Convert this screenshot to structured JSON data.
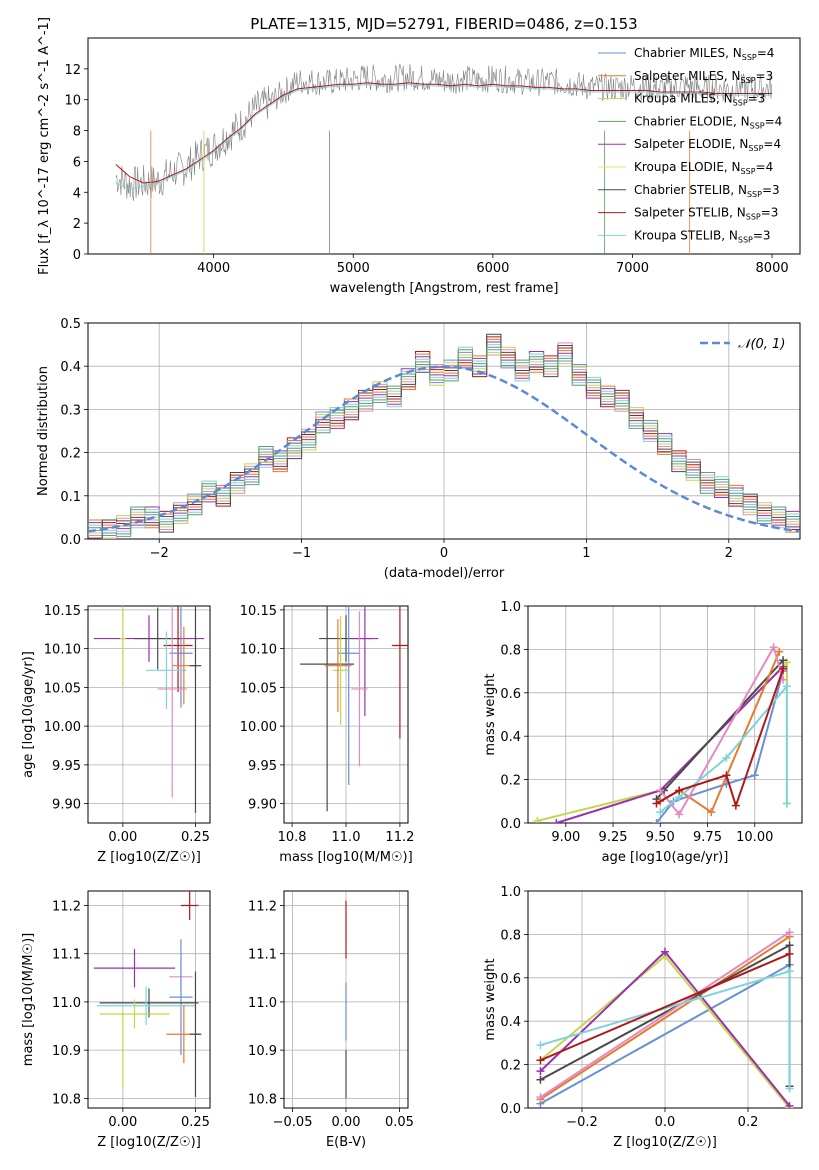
{
  "chart_data": [
    {
      "id": "spectrum",
      "type": "line",
      "title": "PLATE=1315, MJD=52791, FIBERID=0486, z=0.153",
      "xlabel": "wavelength [Angstrom, rest frame]",
      "ylabel": "Flux [f_λ 10^-17 erg cm^-2 s^-1 A^-1]",
      "xlim": [
        3100,
        8200
      ],
      "ylim": [
        0,
        14
      ],
      "xticks": [
        4000,
        5000,
        6000,
        7000,
        8000
      ],
      "yticks": [
        0,
        2,
        4,
        6,
        8,
        10,
        12
      ],
      "grid": false,
      "legend_position": "upper right",
      "legend": [
        {
          "label": "Chabrier MILES, N_SSP=4",
          "color": "#6a8fd6"
        },
        {
          "label": "Salpeter MILES, N_SSP=3",
          "color": "#e67a2e"
        },
        {
          "label": "Kroupa MILES, N_SSP=3",
          "color": "#c4d64a"
        },
        {
          "label": "Chabrier ELODIE, N_SSP=4",
          "color": "#5f9e5f"
        },
        {
          "label": "Salpeter ELODIE, N_SSP=4",
          "color": "#9b30b0"
        },
        {
          "label": "Kroupa ELODIE, N_SSP=4",
          "color": "#dde86a"
        },
        {
          "label": "Chabrier STELIB, N_SSP=3",
          "color": "#4a4a4a"
        },
        {
          "label": "Salpeter STELIB, N_SSP=3",
          "color": "#b01818"
        },
        {
          "label": "Kroupa STELIB, N_SSP=3",
          "color": "#7fd4d8"
        }
      ],
      "series": [
        {
          "role": "data",
          "color": "#808080",
          "x": [
            3300,
            3400,
            3500,
            3600,
            3700,
            3800,
            3900,
            4000,
            4100,
            4200,
            4300,
            4400,
            4500,
            4600,
            4700,
            4800,
            4900,
            5000,
            5100,
            5200,
            5300,
            5400,
            5500,
            5600,
            5700,
            5800,
            5900,
            6000,
            6100,
            6200,
            6300,
            6400,
            6500,
            6600,
            6700,
            6800,
            6900,
            7000,
            7100,
            7200,
            7300,
            7400,
            7500,
            7600,
            7700,
            7800,
            7900,
            8000
          ],
          "y": [
            5.0,
            4.5,
            4.6,
            4.7,
            5.3,
            5.6,
            6.4,
            6.9,
            7.7,
            8.4,
            9.4,
            9.8,
            10.5,
            11.2,
            11.2,
            11.1,
            11.2,
            11.3,
            11.5,
            11.3,
            11.4,
            11.5,
            11.4,
            11.3,
            11.2,
            11.4,
            11.2,
            11.4,
            11.3,
            11.2,
            11.1,
            11.2,
            11.1,
            11.0,
            10.8,
            10.8,
            10.8,
            10.9,
            10.8,
            10.7,
            10.8,
            10.9,
            10.7,
            10.8,
            10.7,
            10.8,
            10.7,
            10.8
          ]
        },
        {
          "role": "model",
          "color": "#7fd4d8",
          "x": [
            3300,
            3400,
            3500,
            3600,
            3700,
            3800,
            3900,
            4000,
            4100,
            4200,
            4300,
            4400,
            4500,
            4600,
            4700,
            4800,
            4900,
            5000,
            5100,
            5200,
            5300,
            5400,
            5500,
            5600,
            5700,
            5800,
            5900,
            6000,
            6100,
            6200,
            6300,
            6400,
            6500,
            6600,
            6700,
            6800,
            6900,
            7000,
            7100,
            7200,
            7300,
            7400,
            7500,
            7600,
            7700,
            7800,
            7900,
            8000
          ],
          "y": [
            4.6,
            4.2,
            4.4,
            4.6,
            5.0,
            5.4,
            6.0,
            6.6,
            7.4,
            8.1,
            9.0,
            9.6,
            10.2,
            10.6,
            10.7,
            10.8,
            10.9,
            10.9,
            11.0,
            10.9,
            10.9,
            11.0,
            10.9,
            10.9,
            10.8,
            10.9,
            10.8,
            10.9,
            10.8,
            10.8,
            10.7,
            10.7,
            10.6,
            10.6,
            10.5,
            10.5,
            10.5,
            10.5,
            10.5,
            10.4,
            10.4,
            10.4,
            10.4,
            10.3,
            10.3,
            10.3,
            10.3,
            10.3
          ]
        },
        {
          "role": "model",
          "color": "#b01818",
          "x": [
            3300,
            3400,
            3500,
            3600,
            3700,
            3800,
            3900,
            4000,
            4100,
            4200,
            4300,
            4400,
            4500,
            4600,
            4700,
            4800,
            4900,
            5000,
            5100,
            5200,
            5300,
            5400,
            5500,
            5600,
            5700,
            5800,
            5900,
            6000,
            6100,
            6200,
            6300,
            6400,
            6500,
            6600,
            6700,
            6800,
            6900,
            7000,
            7100,
            7200,
            7300,
            7400,
            7500,
            7600,
            7700,
            7800,
            7900,
            8000
          ],
          "y": [
            5.8,
            5.0,
            4.6,
            4.7,
            5.1,
            5.5,
            6.1,
            6.7,
            7.5,
            8.2,
            9.1,
            9.7,
            10.3,
            10.7,
            10.8,
            10.9,
            11.0,
            11.0,
            11.1,
            11.0,
            11.0,
            11.1,
            11.0,
            11.0,
            10.9,
            11.0,
            10.9,
            11.0,
            10.9,
            10.9,
            10.8,
            10.8,
            10.7,
            10.7,
            10.6,
            10.6,
            10.6,
            10.6,
            10.6,
            10.5,
            10.5,
            10.5,
            10.5,
            10.4,
            10.4,
            10.4,
            10.4,
            10.4
          ]
        }
      ]
    },
    {
      "id": "residuals",
      "type": "line",
      "xlabel": "(data-model)/error",
      "ylabel": "Normed distribution",
      "xlim": [
        -2.5,
        2.5
      ],
      "ylim": [
        0,
        0.5
      ],
      "xticks": [
        -2,
        -1,
        0,
        1,
        2
      ],
      "yticks": [
        0.0,
        0.1,
        0.2,
        0.3,
        0.4,
        0.5
      ],
      "grid": true,
      "legend_position": "upper right",
      "legend": [
        {
          "label": "𝒩(0, 1)",
          "color": "#5b8ad6",
          "style": "dashed"
        }
      ],
      "series": [
        {
          "role": "histogram",
          "color": "#b01818",
          "bin_width": 0.1,
          "x0": -2.5,
          "values": [
            0.02,
            0.02,
            0.03,
            0.05,
            0.05,
            0.04,
            0.06,
            0.08,
            0.11,
            0.1,
            0.13,
            0.15,
            0.19,
            0.18,
            0.21,
            0.23,
            0.27,
            0.28,
            0.3,
            0.32,
            0.34,
            0.33,
            0.37,
            0.41,
            0.38,
            0.39,
            0.42,
            0.4,
            0.45,
            0.42,
            0.39,
            0.41,
            0.4,
            0.43,
            0.38,
            0.35,
            0.33,
            0.32,
            0.28,
            0.25,
            0.22,
            0.18,
            0.16,
            0.13,
            0.12,
            0.1,
            0.08,
            0.06,
            0.05,
            0.04
          ]
        }
      ],
      "normal_curve": {
        "mu": 0,
        "sigma": 1
      }
    },
    {
      "id": "age_vs_Z",
      "type": "scatter",
      "xlabel": "Z [log10(Z/Z☉)]",
      "ylabel": "age [log10(age/yr)]",
      "xlim": [
        -0.12,
        0.3
      ],
      "ylim": [
        9.875,
        10.155
      ],
      "xticks": [
        0.0,
        0.25
      ],
      "yticks": [
        9.9,
        9.95,
        10.0,
        10.05,
        10.1,
        10.15
      ],
      "grid": true,
      "errorbars": [
        {
          "x": 0.09,
          "y": 10.113,
          "xerr": 0.19,
          "yerr": 0.03,
          "color": "#9b30b0"
        },
        {
          "x": 0.12,
          "y": 10.113,
          "xerr": 0.08,
          "yerr": 0.04,
          "color": "#4a4a4a"
        },
        {
          "x": 0.19,
          "y": 10.104,
          "xerr": 0.05,
          "yerr": 0.06,
          "color": "#b01818"
        },
        {
          "x": 0.2,
          "y": 10.094,
          "xerr": 0.04,
          "yerr": 0.07,
          "color": "#6a8fd6"
        },
        {
          "x": 0.15,
          "y": 10.072,
          "xerr": 0.07,
          "yerr": 0.05,
          "color": "#7fd4d8"
        },
        {
          "x": 0.21,
          "y": 10.078,
          "xerr": 0.04,
          "yerr": 0.05,
          "color": "#e67a2e"
        },
        {
          "x": 0.17,
          "y": 10.048,
          "xerr": 0.05,
          "yerr": 0.14,
          "color": "#e48ac0"
        },
        {
          "x": 0.25,
          "y": 10.078,
          "xerr": 0.02,
          "yerr": 0.19,
          "color": "#4a4a4a"
        },
        {
          "x": 0.0,
          "y": 10.113,
          "xerr": 0.01,
          "yerr": 0.06,
          "color": "#c4d64a"
        }
      ]
    },
    {
      "id": "age_vs_mass",
      "type": "scatter",
      "xlabel": "mass [log10(M/M☉)]",
      "ylabel": "",
      "xlim": [
        10.77,
        11.23
      ],
      "ylim": [
        9.875,
        10.155
      ],
      "xticks": [
        10.8,
        11.0,
        11.2
      ],
      "yticks": [
        9.9,
        9.95,
        10.0,
        10.05,
        10.1,
        10.15
      ],
      "grid": true,
      "errorbars": [
        {
          "x": 10.93,
          "y": 10.08,
          "xerr": 0.1,
          "yerr": 0.19,
          "color": "#4a4a4a"
        },
        {
          "x": 11.0,
          "y": 10.113,
          "xerr": 0.1,
          "yerr": 0.03,
          "color": "#4a4a4a"
        },
        {
          "x": 11.07,
          "y": 10.113,
          "xerr": 0.05,
          "yerr": 0.1,
          "color": "#9b30b0"
        },
        {
          "x": 11.2,
          "y": 10.104,
          "xerr": 0.03,
          "yerr": 0.12,
          "color": "#b01818"
        },
        {
          "x": 11.01,
          "y": 10.094,
          "xerr": 0.04,
          "yerr": 0.17,
          "color": "#6a8fd6"
        },
        {
          "x": 11.05,
          "y": 10.048,
          "xerr": 0.03,
          "yerr": 0.1,
          "color": "#e48ac0"
        },
        {
          "x": 10.98,
          "y": 10.072,
          "xerr": 0.03,
          "yerr": 0.07,
          "color": "#c4d64a"
        },
        {
          "x": 10.97,
          "y": 10.078,
          "xerr": 0.05,
          "yerr": 0.06,
          "color": "#e67a2e"
        }
      ]
    },
    {
      "id": "weight_vs_age",
      "type": "line",
      "xlabel": "age [log10(age/yr)]",
      "ylabel": "mass weight",
      "xlim": [
        8.8,
        10.25
      ],
      "ylim": [
        0,
        1
      ],
      "xticks": [
        9.0,
        9.25,
        9.5,
        9.75,
        10.0
      ],
      "yticks": [
        0.0,
        0.2,
        0.4,
        0.6,
        0.8,
        1.0
      ],
      "grid": true,
      "series": [
        {
          "color": "#c4d64a",
          "x": [
            8.85,
            9.5,
            10.17,
            10.17
          ],
          "y": [
            0.01,
            0.15,
            0.74,
            0.09
          ]
        },
        {
          "color": "#9b30b0",
          "x": [
            8.95,
            9.5,
            10.15
          ],
          "y": [
            0.0,
            0.15,
            0.72
          ]
        },
        {
          "color": "#4a4a4a",
          "x": [
            9.48,
            9.52,
            10.15
          ],
          "y": [
            0.11,
            0.15,
            0.75
          ]
        },
        {
          "color": "#6a8fd6",
          "x": [
            9.48,
            9.57,
            9.85,
            10.0,
            10.15
          ],
          "y": [
            0.0,
            0.1,
            0.18,
            0.22,
            0.7
          ]
        },
        {
          "color": "#e67a2e",
          "x": [
            9.5,
            9.6,
            9.77,
            10.13
          ],
          "y": [
            0.1,
            0.15,
            0.05,
            0.79
          ]
        },
        {
          "color": "#e48ac0",
          "x": [
            9.5,
            9.6,
            10.1,
            10.15
          ],
          "y": [
            0.15,
            0.04,
            0.81,
            0.66
          ]
        },
        {
          "color": "#7fd4d8",
          "x": [
            9.5,
            9.6,
            9.85,
            10.17,
            10.17
          ],
          "y": [
            0.05,
            0.12,
            0.3,
            0.63,
            0.09
          ]
        },
        {
          "color": "#b01818",
          "x": [
            9.48,
            9.6,
            9.85,
            9.9,
            10.15
          ],
          "y": [
            0.09,
            0.15,
            0.22,
            0.08,
            0.71
          ]
        }
      ]
    },
    {
      "id": "mass_vs_Z",
      "type": "scatter",
      "xlabel": "Z [log10(Z/Z☉)]",
      "ylabel": "mass [log10(M/M☉)]",
      "xlim": [
        -0.12,
        0.3
      ],
      "ylim": [
        10.78,
        11.23
      ],
      "xticks": [
        0.0,
        0.25
      ],
      "yticks": [
        10.8,
        10.9,
        11.0,
        11.1,
        11.2
      ],
      "grid": true,
      "errorbars": [
        {
          "x": 0.23,
          "y": 11.2,
          "xerr": 0.03,
          "yerr": 0.03,
          "color": "#b01818"
        },
        {
          "x": 0.04,
          "y": 11.07,
          "xerr": 0.14,
          "yerr": 0.04,
          "color": "#9b30b0"
        },
        {
          "x": 0.2,
          "y": 11.052,
          "xerr": 0.04,
          "yerr": 0.03,
          "color": "#e48ac0"
        },
        {
          "x": 0.2,
          "y": 11.01,
          "xerr": 0.04,
          "yerr": 0.12,
          "color": "#6a8fd6"
        },
        {
          "x": 0.09,
          "y": 10.998,
          "xerr": 0.17,
          "yerr": 0.03,
          "color": "#4a4a4a"
        },
        {
          "x": 0.08,
          "y": 10.992,
          "xerr": 0.17,
          "yerr": 0.04,
          "color": "#7fd4d8"
        },
        {
          "x": 0.04,
          "y": 10.975,
          "xerr": 0.12,
          "yerr": 0.03,
          "color": "#c4d64a"
        },
        {
          "x": 0.21,
          "y": 10.933,
          "xerr": 0.06,
          "yerr": 0.06,
          "color": "#e67a2e"
        },
        {
          "x": 0.25,
          "y": 10.933,
          "xerr": 0.02,
          "yerr": 0.13,
          "color": "#4a4a4a"
        },
        {
          "x": 0.0,
          "y": 10.9,
          "xerr": 0.0,
          "yerr": 0.08,
          "color": "#c4d64a"
        }
      ]
    },
    {
      "id": "mass_vs_EBV",
      "type": "scatter",
      "xlabel": "E(B-V)",
      "ylabel": "",
      "xlim": [
        -0.058,
        0.058
      ],
      "ylim": [
        10.78,
        11.23
      ],
      "xticks": [
        -0.05,
        0.0,
        0.05
      ],
      "yticks": [
        10.8,
        10.9,
        11.0,
        11.1,
        11.2
      ],
      "grid": true,
      "errorbars": [
        {
          "x": 0.0,
          "y": 11.15,
          "xerr": 0,
          "yerr": 0.06,
          "color": "#b01818"
        },
        {
          "x": 0.0,
          "y": 10.98,
          "xerr": 0,
          "yerr": 0.06,
          "color": "#6a8fd6"
        },
        {
          "x": 0.0,
          "y": 10.85,
          "xerr": 0,
          "yerr": 0.05,
          "color": "#4a4a4a"
        }
      ]
    },
    {
      "id": "weight_vs_Z",
      "type": "line",
      "xlabel": "Z [log10(Z/Z☉)]",
      "ylabel": "mass weight",
      "xlim": [
        -0.33,
        0.33
      ],
      "ylim": [
        0,
        1
      ],
      "xticks": [
        -0.2,
        0.0,
        0.2
      ],
      "yticks": [
        0.0,
        0.2,
        0.4,
        0.6,
        0.8,
        1.0
      ],
      "grid": true,
      "series": [
        {
          "color": "#6a8fd6",
          "x": [
            -0.3,
            0.3,
            0.3
          ],
          "y": [
            0.02,
            0.66,
            0.1
          ]
        },
        {
          "color": "#e67a2e",
          "x": [
            -0.3,
            0.3
          ],
          "y": [
            0.04,
            0.79
          ]
        },
        {
          "color": "#c4d64a",
          "x": [
            -0.3,
            0.0,
            0.3
          ],
          "y": [
            0.22,
            0.7,
            0.0
          ]
        },
        {
          "color": "#9b30b0",
          "x": [
            -0.3,
            0.0,
            0.3
          ],
          "y": [
            0.17,
            0.72,
            0.01
          ]
        },
        {
          "color": "#4a4a4a",
          "x": [
            -0.3,
            0.3,
            0.3
          ],
          "y": [
            0.13,
            0.75,
            0.1
          ]
        },
        {
          "color": "#e48ac0",
          "x": [
            -0.3,
            0.3
          ],
          "y": [
            0.05,
            0.81
          ]
        },
        {
          "color": "#7fd4d8",
          "x": [
            -0.3,
            0.3,
            0.3
          ],
          "y": [
            0.29,
            0.63,
            0.09
          ]
        },
        {
          "color": "#b01818",
          "x": [
            -0.3,
            0.3
          ],
          "y": [
            0.22,
            0.71
          ]
        }
      ]
    }
  ]
}
